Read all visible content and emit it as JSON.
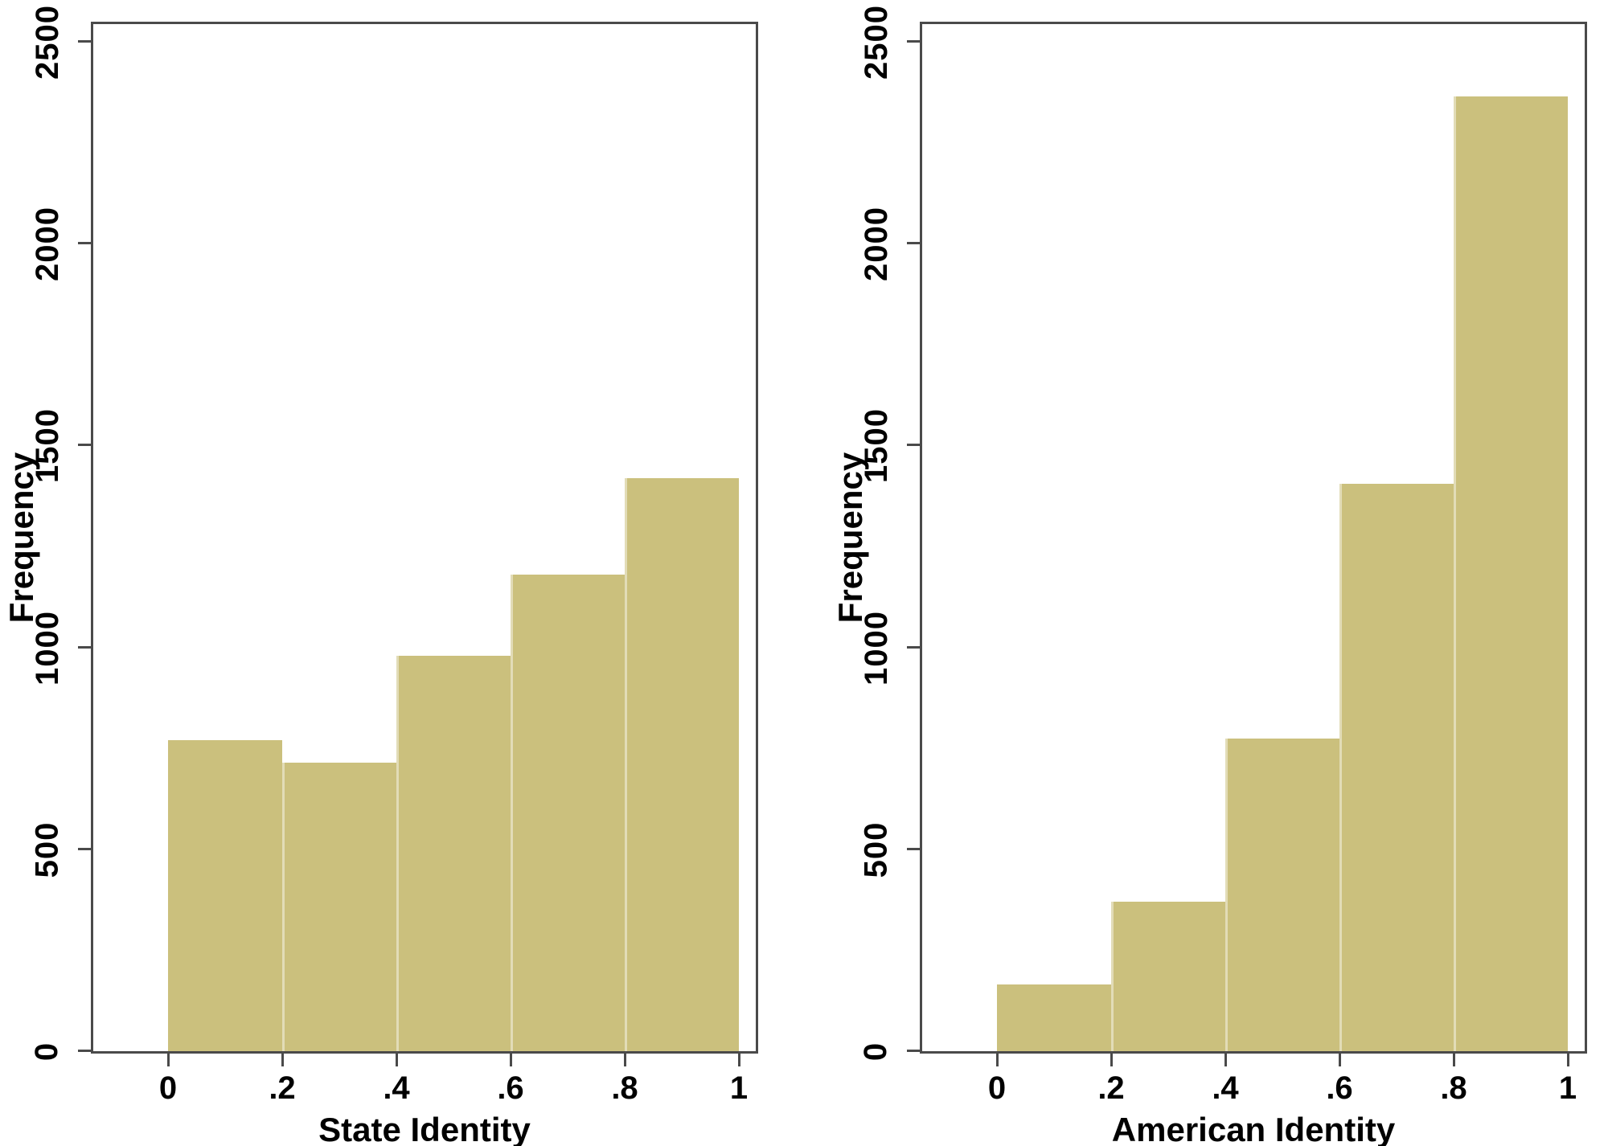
{
  "figure": {
    "background": "#ffffff",
    "bar_fill": "#cbc07d",
    "bar_edge": "#dad3a6",
    "axis_color": "#4a4a4a",
    "text_color": "#000000"
  },
  "chart_data": [
    {
      "type": "bar",
      "subtype": "histogram",
      "title": "",
      "xlabel": "State Identity",
      "ylabel": "Frequency",
      "bin_width": 0.2,
      "bin_edges": [
        0,
        0.2,
        0.4,
        0.6,
        0.8,
        1
      ],
      "values": [
        770,
        715,
        980,
        1180,
        1420
      ],
      "x_ticks": [
        0,
        0.2,
        0.4,
        0.6,
        0.8,
        1
      ],
      "x_tick_labels": [
        "0",
        ".2",
        ".4",
        ".6",
        ".8",
        "1"
      ],
      "y_ticks": [
        0,
        500,
        1000,
        1500,
        2000,
        2500
      ],
      "y_tick_labels": [
        "0",
        "500",
        "1000",
        "1500",
        "2000",
        "2500"
      ],
      "xlim": [
        0,
        1
      ],
      "ylim": [
        0,
        2500
      ],
      "grid": false,
      "legend": "none"
    },
    {
      "type": "bar",
      "subtype": "histogram",
      "title": "",
      "xlabel": "American Identity",
      "ylabel": "Frequency",
      "bin_width": 0.2,
      "bin_edges": [
        0,
        0.2,
        0.4,
        0.6,
        0.8,
        1
      ],
      "values": [
        165,
        370,
        775,
        1405,
        2365
      ],
      "x_ticks": [
        0,
        0.2,
        0.4,
        0.6,
        0.8,
        1
      ],
      "x_tick_labels": [
        "0",
        ".2",
        ".4",
        ".6",
        ".8",
        "1"
      ],
      "y_ticks": [
        0,
        500,
        1000,
        1500,
        2000,
        2500
      ],
      "y_tick_labels": [
        "0",
        "500",
        "1000",
        "1500",
        "2000",
        "2500"
      ],
      "xlim": [
        0,
        1
      ],
      "ylim": [
        0,
        2500
      ],
      "grid": false,
      "legend": "none"
    }
  ]
}
